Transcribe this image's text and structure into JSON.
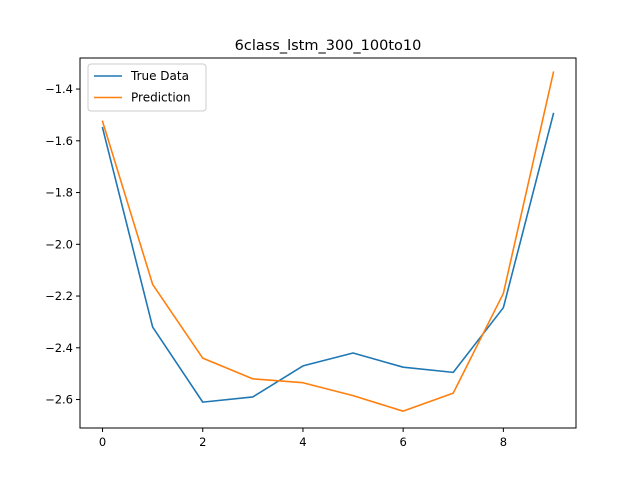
{
  "chart_data": {
    "type": "line",
    "title": "6class_lstm_300_100to10",
    "xlabel": "",
    "ylabel": "",
    "x": [
      0,
      1,
      2,
      3,
      4,
      5,
      6,
      7,
      8,
      9
    ],
    "xlim": [
      -0.45,
      9.45
    ],
    "ylim": [
      -2.71,
      -1.28
    ],
    "xticks": [
      0,
      2,
      4,
      6,
      8
    ],
    "xtick_labels": [
      "0",
      "2",
      "4",
      "6",
      "8"
    ],
    "yticks": [
      -1.4,
      -1.6,
      -1.8,
      -2.0,
      -2.2,
      -2.4,
      -2.6
    ],
    "ytick_labels": [
      "−1.4",
      "−1.6",
      "−1.8",
      "−2.0",
      "−2.2",
      "−2.4",
      "−2.6"
    ],
    "grid": false,
    "legend_position": "top-left",
    "series": [
      {
        "name": "True Data",
        "color": "#1f77b4",
        "values": [
          -1.55,
          -2.32,
          -2.61,
          -2.59,
          -2.47,
          -2.42,
          -2.475,
          -2.495,
          -2.245,
          -1.495
        ]
      },
      {
        "name": "Prediction",
        "color": "#ff7f0e",
        "values": [
          -1.525,
          -2.155,
          -2.44,
          -2.52,
          -2.535,
          -2.585,
          -2.645,
          -2.575,
          -2.19,
          -1.335
        ]
      }
    ]
  }
}
